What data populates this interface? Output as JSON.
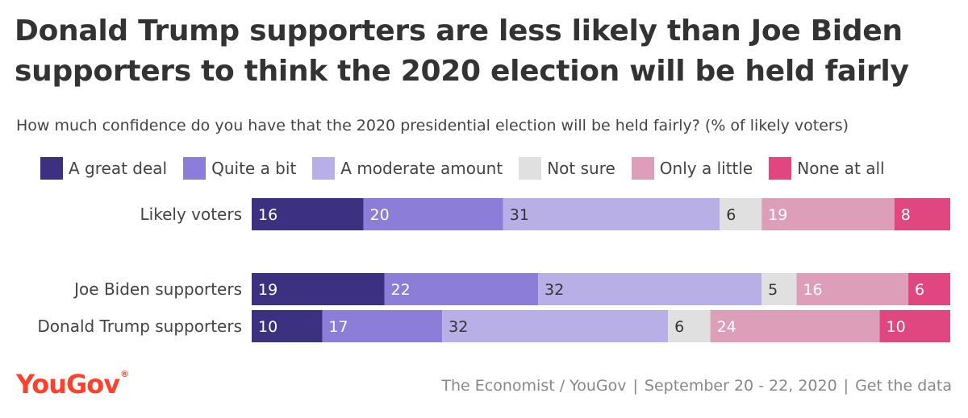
{
  "chart_data": {
    "type": "bar",
    "orientation": "horizontal",
    "stacked": true,
    "title": "Donald Trump supporters are less likely than Joe Biden supporters to think the 2020 election will be held fairly",
    "subtitle": "How much confidence do you have that the 2020 presidential election will be held fairly? (% of likely voters)",
    "legend_position": "top",
    "categories": [
      "Likely voters",
      "Joe Biden supporters",
      "Donald Trump supporters"
    ],
    "series": [
      {
        "name": "A great deal",
        "color": "#3b3180",
        "label_color": "#ffffff",
        "values": [
          16,
          19,
          10
        ]
      },
      {
        "name": "Quite a bit",
        "color": "#8c7dd8",
        "label_color": "#ffffff",
        "values": [
          20,
          22,
          17
        ]
      },
      {
        "name": "A moderate amount",
        "color": "#b8afe6",
        "label_color": "#333333",
        "values": [
          31,
          32,
          32
        ]
      },
      {
        "name": "Not sure",
        "color": "#e0e0e0",
        "label_color": "#333333",
        "values": [
          6,
          5,
          6
        ]
      },
      {
        "name": "Only a little",
        "color": "#dd9eb9",
        "label_color": "#ffffff",
        "values": [
          19,
          16,
          24
        ]
      },
      {
        "name": "None at all",
        "color": "#e0467f",
        "label_color": "#ffffff",
        "values": [
          8,
          6,
          10
        ]
      }
    ]
  },
  "logo": {
    "text": "YouGov",
    "mark": "®"
  },
  "footer": {
    "source": "The Economist / YouGov",
    "date": "September 20 - 22, 2020",
    "link": "Get the data",
    "separator": "|"
  }
}
